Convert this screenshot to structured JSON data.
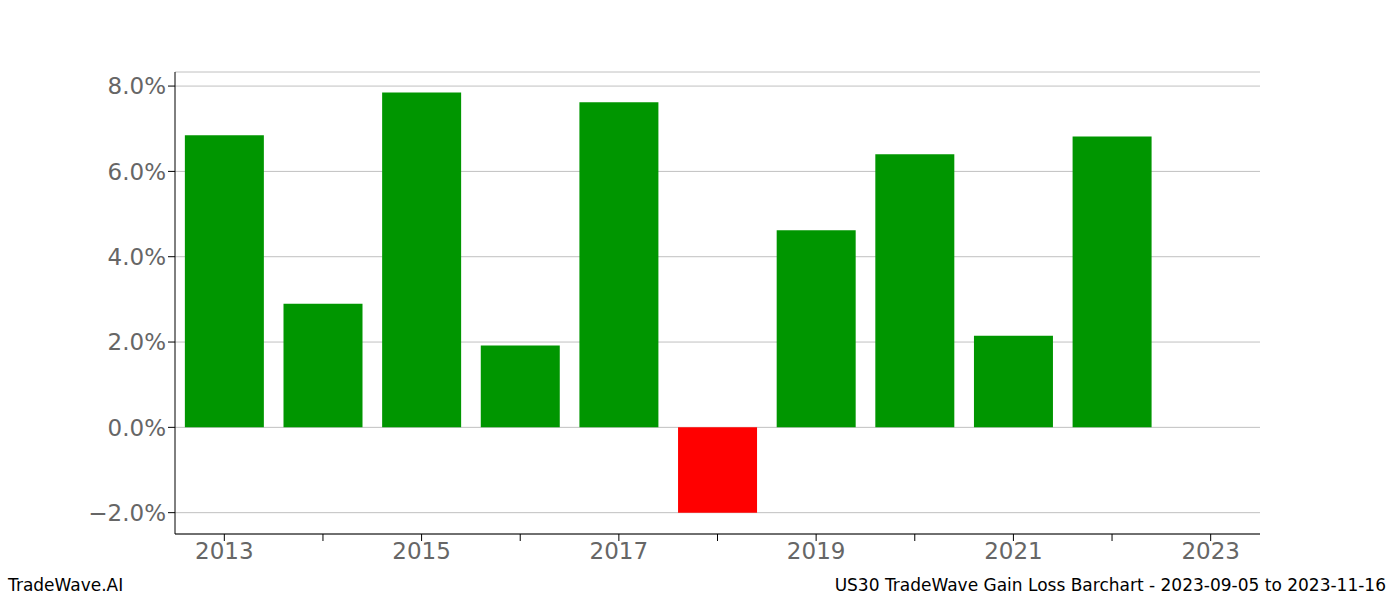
{
  "chart_data": {
    "type": "bar",
    "title": "US30 TradeWave Gain Loss Barchart - 2023-09-05 to 2023-11-16",
    "annotations": [
      "TradeWave.AI"
    ],
    "categories": [
      "2013",
      null,
      "2015",
      null,
      "2017",
      null,
      "2019",
      null,
      "2021",
      null,
      "2023"
    ],
    "values": [
      6.85,
      2.9,
      7.85,
      1.92,
      7.62,
      -2.0,
      4.62,
      6.4,
      2.15,
      6.82,
      null
    ],
    "colors": [
      "#009600",
      "#009600",
      "#009600",
      "#009600",
      "#009600",
      "#ff0000",
      "#009600",
      "#009600",
      "#009600",
      "#009600",
      "#009600"
    ],
    "ylim": [
      -2.5,
      8.33
    ],
    "yticks": [
      {
        "value": -2,
        "label": "−2.0%"
      },
      {
        "value": 0,
        "label": "0.0%"
      },
      {
        "value": 2,
        "label": "2.0%"
      },
      {
        "value": 4,
        "label": "4.0%"
      },
      {
        "value": 6,
        "label": "6.0%"
      },
      {
        "value": 8,
        "label": "8.0%"
      }
    ],
    "grid": true
  }
}
